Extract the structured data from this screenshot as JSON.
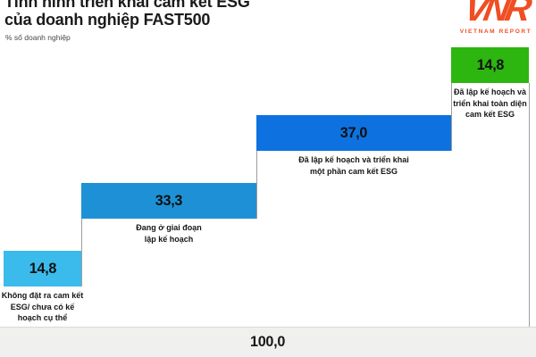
{
  "header": {
    "title_line1": "Tình hình triển khai cam kết ESG",
    "title_line2": "của doanh nghiệp FAST500",
    "subtitle": "% số doanh nghiệp"
  },
  "logo": {
    "mark": "VNR",
    "wordmark": "VIETNAM REPORT",
    "color": "#F04E23"
  },
  "chart_data": {
    "type": "bar",
    "variant": "horizontal-waterfall",
    "title": "Tình hình triển khai cam kết ESG của doanh nghiệp FAST500",
    "unit_label": "% số doanh nghiệp",
    "categories": [
      "Không đặt ra cam kết ESG/ chưa có kế hoạch cụ thể",
      "Đang ở giai đoạn lập kế hoạch",
      "Đã lập kế hoạch và triển khai một phần cam kết ESG",
      "Đã lập kế hoạch và triển khai toàn diện cam kết ESG"
    ],
    "values": [
      14.8,
      33.3,
      37.0,
      14.8
    ],
    "total": 100.0,
    "legend_position": "none",
    "grid": false,
    "segments": [
      {
        "value": 14.8,
        "value_label": "14,8",
        "color": "#3BBBEB",
        "label": "Không đặt ra cam kết\nESG/ chưa có kế\nhoạch cụ thể"
      },
      {
        "value": 33.3,
        "value_label": "33,3",
        "color": "#1E91D6",
        "label": "Đang ở giai đoạn\nlập kế hoạch"
      },
      {
        "value": 37.0,
        "value_label": "37,0",
        "color": "#0D72E0",
        "label": "Đã lập kế hoạch và triển khai\nmột phần cam kết ESG"
      },
      {
        "value": 14.8,
        "value_label": "14,8",
        "color": "#2DB510",
        "label": "Đã lập kế hoạch và\ntriển khai toàn diện\ncam kết ESG"
      }
    ],
    "total_bar": {
      "value_label": "100,0",
      "color": "#F0F0EF"
    }
  }
}
